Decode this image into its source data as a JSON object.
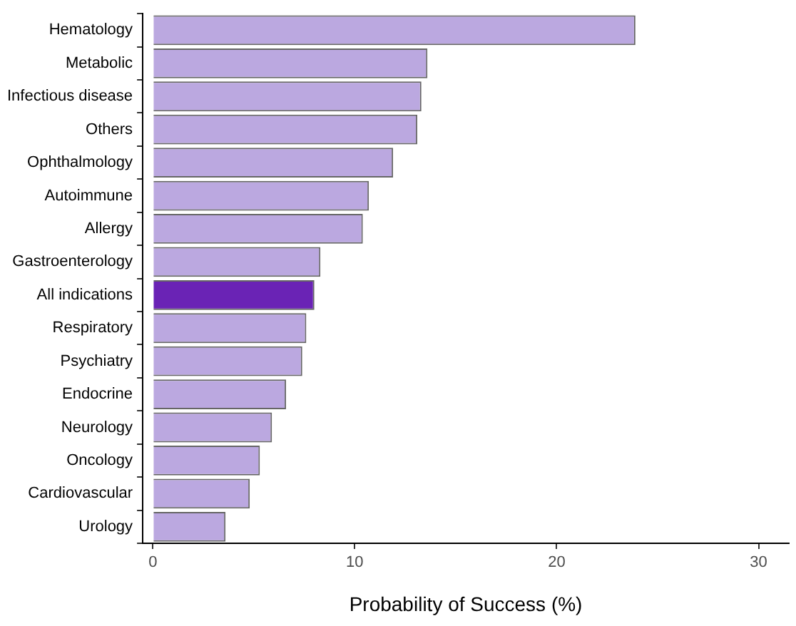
{
  "chart_data": {
    "type": "bar",
    "orientation": "horizontal",
    "xlabel": "Probability of Success (%)",
    "categories": [
      "Hematology",
      "Metabolic",
      "Infectious disease",
      "Others",
      "Ophthalmology",
      "Autoimmune",
      "Allergy",
      "Gastroenterology",
      "All indications",
      "Respiratory",
      "Psychiatry",
      "Endocrine",
      "Neurology",
      "Oncology",
      "Cardiovascular",
      "Urology"
    ],
    "values": [
      23.9,
      13.6,
      13.3,
      13.1,
      11.9,
      10.7,
      10.4,
      8.3,
      8.0,
      7.6,
      7.4,
      6.6,
      5.9,
      5.3,
      4.8,
      3.6
    ],
    "colors": [
      "#bba8e0",
      "#bba8e0",
      "#bba8e0",
      "#bba8e0",
      "#bba8e0",
      "#bba8e0",
      "#bba8e0",
      "#bba8e0",
      "#6a23b5",
      "#bba8e0",
      "#bba8e0",
      "#bba8e0",
      "#bba8e0",
      "#bba8e0",
      "#bba8e0",
      "#bba8e0"
    ],
    "xlim": [
      -0.5,
      31.5
    ],
    "xticks": [
      0,
      10,
      20,
      30
    ]
  }
}
